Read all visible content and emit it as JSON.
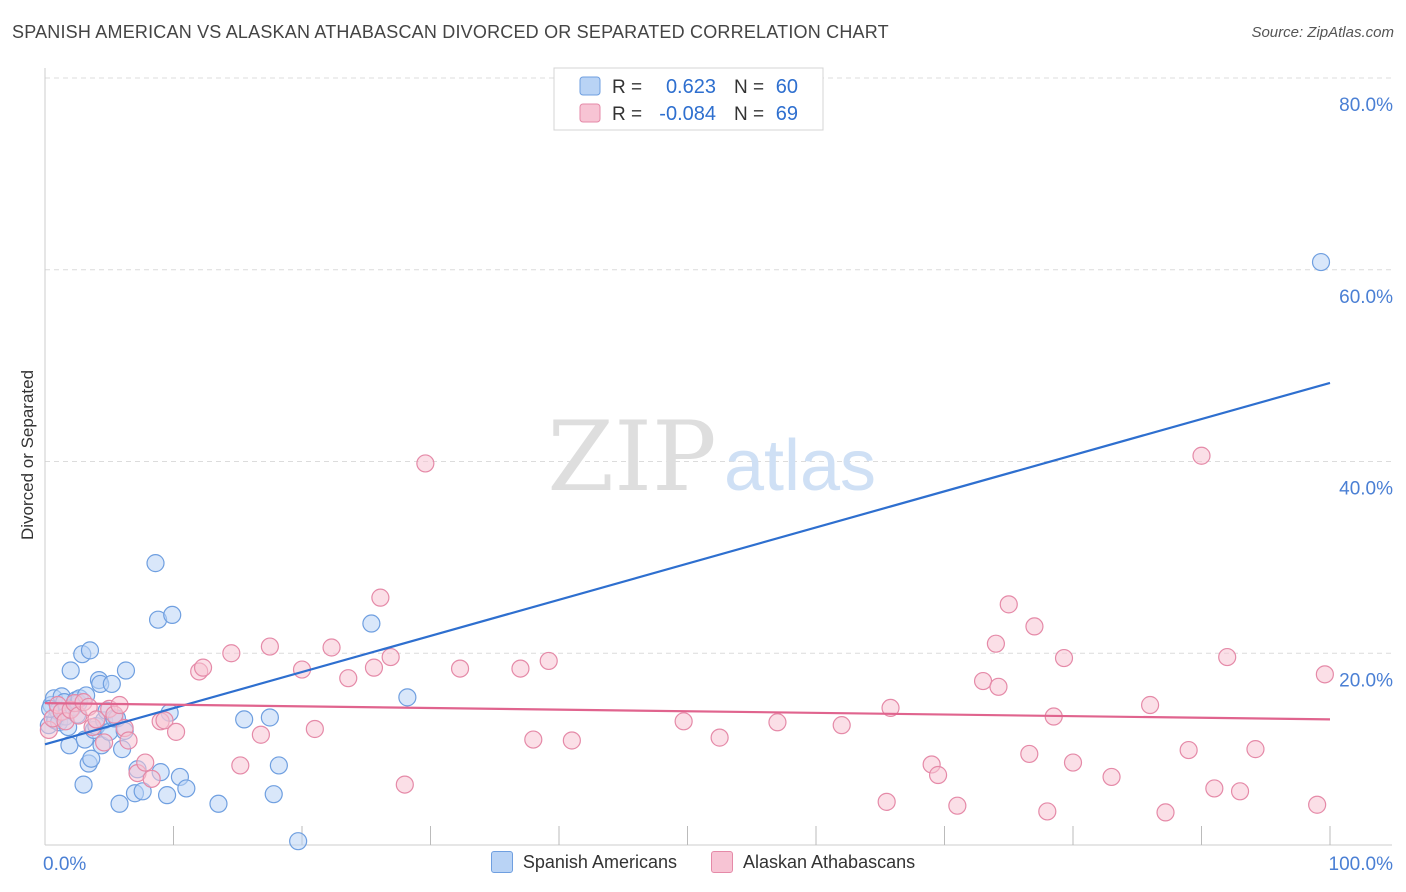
{
  "header": {
    "title": "SPANISH AMERICAN VS ALASKAN ATHABASCAN DIVORCED OR SEPARATED CORRELATION CHART",
    "source": "Source: ZipAtlas.com"
  },
  "watermark": {
    "zip": "ZIP",
    "atlas": "atlas"
  },
  "legend_top": {
    "rows": [
      {
        "r_label": "R =",
        "r_value": "0.623",
        "n_label": "N =",
        "n_value": "60"
      },
      {
        "r_label": "R =",
        "r_value": "-0.084",
        "n_label": "N =",
        "n_value": "69"
      }
    ]
  },
  "legend_bottom": {
    "items": [
      {
        "label": "Spanish Americans"
      },
      {
        "label": "Alaskan Athabascans"
      }
    ]
  },
  "colors": {
    "blue_fill": "#b9d3f5",
    "blue_stroke": "#6f9fe0",
    "blue_line": "#2e6fcf",
    "pink_fill": "#f7c4d4",
    "pink_stroke": "#e58aa8",
    "pink_line": "#e0648e",
    "tick_text": "#4a7fd4",
    "grid": "#dcdcdc"
  },
  "chart_data": {
    "type": "scatter",
    "title": "SPANISH AMERICAN VS ALASKAN ATHABASCAN DIVORCED OR SEPARATED CORRELATION CHART",
    "xlabel": "",
    "ylabel": "Divorced or Separated",
    "xlim": [
      0,
      100
    ],
    "ylim": [
      0,
      80
    ],
    "x_tick_labels": [
      "0.0%",
      "100.0%"
    ],
    "y_ticks": [
      20,
      40,
      60,
      80
    ],
    "y_tick_labels": [
      "20.0%",
      "40.0%",
      "60.0%",
      "80.0%"
    ],
    "grid": true,
    "legend_position": "top-center",
    "series": [
      {
        "name": "Spanish Americans",
        "r": 0.623,
        "n": 60,
        "trend": {
          "x": [
            0,
            100
          ],
          "y": [
            10.5,
            48.2
          ]
        },
        "points": [
          [
            0.3,
            12.5
          ],
          [
            0.5,
            14.6
          ],
          [
            0.7,
            15.3
          ],
          [
            0.8,
            13.0
          ],
          [
            1.0,
            14.0
          ],
          [
            1.1,
            12.8
          ],
          [
            1.3,
            15.5
          ],
          [
            1.5,
            14.9
          ],
          [
            1.6,
            13.4
          ],
          [
            1.8,
            12.3
          ],
          [
            1.9,
            10.4
          ],
          [
            2.0,
            18.2
          ],
          [
            2.2,
            14.4
          ],
          [
            2.4,
            15.1
          ],
          [
            2.5,
            13.6
          ],
          [
            2.6,
            14.8
          ],
          [
            2.7,
            15.3
          ],
          [
            2.9,
            19.9
          ],
          [
            3.0,
            6.3
          ],
          [
            3.1,
            11.0
          ],
          [
            3.2,
            15.6
          ],
          [
            3.4,
            8.5
          ],
          [
            3.5,
            20.3
          ],
          [
            3.6,
            9.0
          ],
          [
            3.8,
            12.0
          ],
          [
            4.0,
            12.4
          ],
          [
            4.2,
            17.2
          ],
          [
            4.3,
            16.8
          ],
          [
            4.4,
            10.4
          ],
          [
            4.6,
            13.0
          ],
          [
            4.8,
            14.0
          ],
          [
            5.0,
            11.8
          ],
          [
            5.2,
            16.8
          ],
          [
            5.4,
            13.2
          ],
          [
            5.6,
            13.2
          ],
          [
            5.8,
            4.3
          ],
          [
            6.0,
            10.0
          ],
          [
            6.2,
            11.9
          ],
          [
            6.3,
            18.2
          ],
          [
            7.0,
            5.4
          ],
          [
            7.2,
            7.9
          ],
          [
            7.6,
            5.6
          ],
          [
            8.6,
            29.4
          ],
          [
            8.8,
            23.5
          ],
          [
            9.0,
            7.6
          ],
          [
            9.5,
            5.2
          ],
          [
            9.7,
            13.8
          ],
          [
            9.9,
            24.0
          ],
          [
            10.5,
            7.1
          ],
          [
            11.0,
            5.9
          ],
          [
            13.5,
            4.3
          ],
          [
            15.5,
            13.1
          ],
          [
            17.5,
            13.3
          ],
          [
            17.8,
            5.3
          ],
          [
            18.2,
            8.3
          ],
          [
            19.7,
            0.4
          ],
          [
            25.4,
            23.1
          ],
          [
            28.2,
            15.4
          ],
          [
            99.3,
            60.8
          ],
          [
            0.4,
            14.2
          ]
        ]
      },
      {
        "name": "Alaskan Athabascans",
        "r": -0.084,
        "n": 69,
        "trend": {
          "x": [
            0,
            100
          ],
          "y": [
            14.8,
            13.1
          ]
        },
        "points": [
          [
            0.3,
            12.0
          ],
          [
            0.6,
            13.2
          ],
          [
            1.0,
            14.6
          ],
          [
            1.3,
            13.9
          ],
          [
            1.6,
            12.9
          ],
          [
            2.0,
            14.1
          ],
          [
            2.3,
            14.8
          ],
          [
            2.6,
            13.5
          ],
          [
            3.0,
            14.9
          ],
          [
            3.4,
            14.4
          ],
          [
            3.7,
            12.3
          ],
          [
            4.0,
            13.1
          ],
          [
            4.6,
            10.7
          ],
          [
            5.0,
            14.2
          ],
          [
            5.4,
            13.6
          ],
          [
            5.8,
            14.6
          ],
          [
            6.2,
            12.2
          ],
          [
            6.5,
            10.9
          ],
          [
            7.2,
            7.5
          ],
          [
            7.8,
            8.6
          ],
          [
            8.3,
            6.9
          ],
          [
            9.0,
            12.9
          ],
          [
            9.3,
            13.0
          ],
          [
            10.2,
            11.8
          ],
          [
            12.0,
            18.1
          ],
          [
            12.3,
            18.5
          ],
          [
            14.5,
            20.0
          ],
          [
            15.2,
            8.3
          ],
          [
            16.8,
            11.5
          ],
          [
            17.5,
            20.7
          ],
          [
            20.0,
            18.3
          ],
          [
            21.0,
            12.1
          ],
          [
            22.3,
            20.6
          ],
          [
            23.6,
            17.4
          ],
          [
            25.6,
            18.5
          ],
          [
            26.1,
            25.8
          ],
          [
            26.9,
            19.6
          ],
          [
            28.0,
            6.3
          ],
          [
            29.6,
            39.8
          ],
          [
            32.3,
            18.4
          ],
          [
            37.0,
            18.4
          ],
          [
            38.0,
            11.0
          ],
          [
            39.2,
            19.2
          ],
          [
            41.0,
            10.9
          ],
          [
            49.7,
            12.9
          ],
          [
            52.5,
            11.2
          ],
          [
            57.0,
            12.8
          ],
          [
            62.0,
            12.5
          ],
          [
            65.5,
            4.5
          ],
          [
            65.8,
            14.3
          ],
          [
            69.0,
            8.4
          ],
          [
            69.5,
            7.3
          ],
          [
            71.0,
            4.1
          ],
          [
            73.0,
            17.1
          ],
          [
            74.0,
            21.0
          ],
          [
            74.2,
            16.5
          ],
          [
            75.0,
            25.1
          ],
          [
            76.6,
            9.5
          ],
          [
            77.0,
            22.8
          ],
          [
            78.0,
            3.5
          ],
          [
            78.5,
            13.4
          ],
          [
            79.3,
            19.5
          ],
          [
            80.0,
            8.6
          ],
          [
            83.0,
            7.1
          ],
          [
            86.0,
            14.6
          ],
          [
            87.2,
            3.4
          ],
          [
            89.0,
            9.9
          ],
          [
            90.0,
            40.6
          ],
          [
            91.0,
            5.9
          ]
        ]
      }
    ],
    "extra_pink_points": [
      [
        92.0,
        19.6
      ],
      [
        93.0,
        5.6
      ],
      [
        94.2,
        10.0
      ],
      [
        99.0,
        4.2
      ],
      [
        99.6,
        17.8
      ]
    ]
  }
}
